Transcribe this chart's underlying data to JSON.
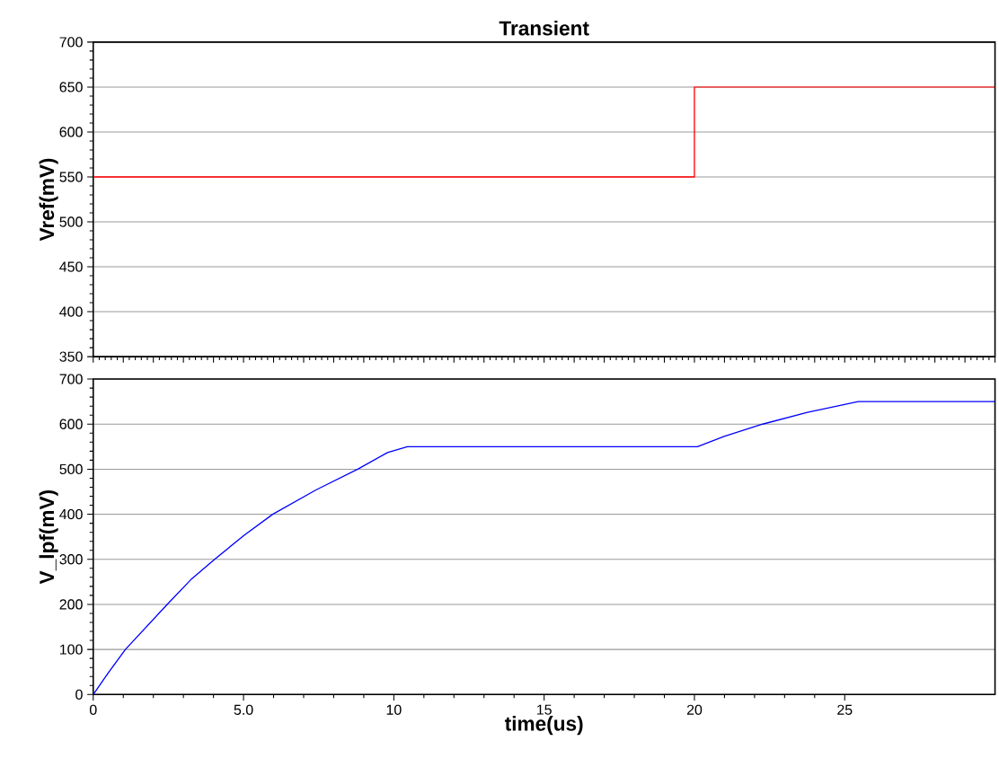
{
  "chart_data": [
    {
      "type": "step",
      "title": "Transient",
      "ylabel": "Vref(mV)",
      "xlim": [
        0,
        30
      ],
      "ylim": [
        350,
        700
      ],
      "yticks": [
        350,
        400,
        450,
        500,
        550,
        600,
        650,
        700
      ],
      "grid": "y",
      "tick_labels": "y",
      "series": [
        {
          "color": "#ff0000",
          "x": [
            0,
            20,
            30
          ],
          "values": [
            550,
            650,
            650
          ]
        }
      ]
    },
    {
      "type": "line",
      "xlabel": "time(us)",
      "ylabel": "V_lpf(mV)",
      "xlim": [
        0,
        30
      ],
      "ylim": [
        0,
        700
      ],
      "xticks": [
        0,
        {
          "value": 5,
          "label": "5.0"
        },
        10,
        15,
        20,
        25
      ],
      "yticks": [
        0,
        100,
        200,
        300,
        400,
        500,
        600,
        700
      ],
      "grid": "y",
      "series": [
        {
          "color": "#0000ff",
          "x": [
            0,
            0.48,
            1.07,
            2.46,
            3.25,
            4.04,
            5.03,
            5.97,
            7.41,
            8.8,
            9.79,
            10.45,
            20.1,
            20.99,
            22.27,
            23.76,
            25.45,
            30
          ],
          "values": [
            0,
            46,
            100,
            200,
            255,
            300,
            354,
            400,
            454,
            500,
            537,
            550,
            550,
            573,
            600,
            626,
            650,
            650
          ]
        }
      ]
    }
  ]
}
